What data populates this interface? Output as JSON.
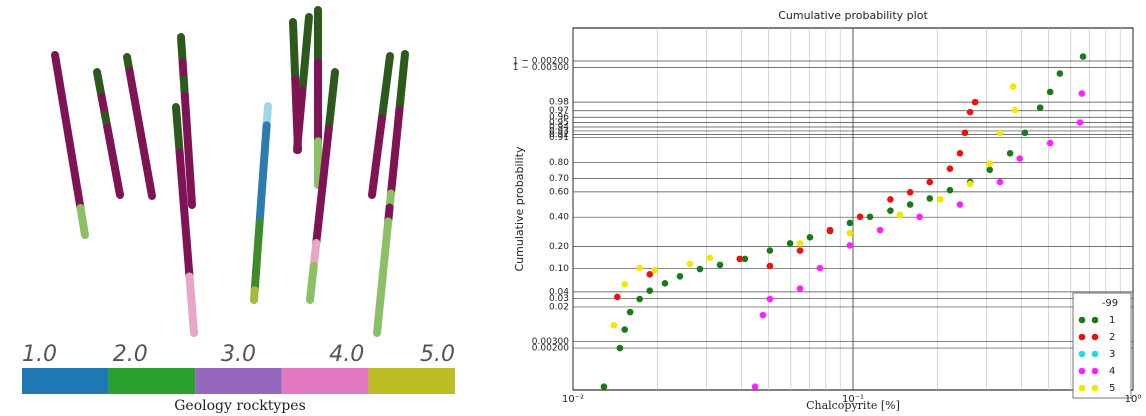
{
  "chart_data": [
    {
      "type": "colorbar",
      "xlabel": "Geology rocktypes",
      "bins": [
        1,
        1.8,
        2.6,
        3.4,
        4.2,
        5
      ],
      "colors": [
        "#1f77b4",
        "#2ca02c",
        "#9467bd",
        "#e377c2",
        "#bcbd22"
      ],
      "xlim": [
        1,
        5
      ],
      "xticks": [
        {
          "value": 1,
          "label": "1.0"
        },
        {
          "value": 2,
          "label": "2.0"
        },
        {
          "value": 3,
          "label": "3.0"
        },
        {
          "value": 4,
          "label": "4.0"
        },
        {
          "value": 5,
          "label": "5.0"
        }
      ]
    },
    {
      "type": "scatter",
      "title": "Cumulative probability plot",
      "xlabel": "Chalcopyrite [%]",
      "ylabel": "Cumulative probability",
      "xscale": "log",
      "yscale": "probability",
      "grid": true,
      "legend": "lower right",
      "legend_title": "-99",
      "xlim": [
        0.01,
        1
      ],
      "xticks": [
        {
          "value": 0.01,
          "label": "10⁻²"
        },
        {
          "value": 0.1,
          "label": "10⁻¹"
        },
        {
          "value": 1,
          "label": "10⁰"
        }
      ],
      "xminorticks": [
        0.02,
        0.03,
        0.04,
        0.05,
        0.06,
        0.07,
        0.08,
        0.09,
        0.2,
        0.3,
        0.4,
        0.5,
        0.6,
        0.7,
        0.8,
        0.9
      ],
      "ylim": [
        0.0001,
        0.9998
      ],
      "yticks": [
        {
          "value": 0.002,
          "label": "0.00200"
        },
        {
          "value": 0.003,
          "label": "0.00300"
        },
        {
          "value": 0.02,
          "label": "0.02"
        },
        {
          "value": 0.03,
          "label": "0.03"
        },
        {
          "value": 0.04,
          "label": "0.04"
        },
        {
          "value": 0.1,
          "label": "0.10"
        },
        {
          "value": 0.2,
          "label": "0.20"
        },
        {
          "value": 0.4,
          "label": "0.40"
        },
        {
          "value": 0.6,
          "label": "0.60"
        },
        {
          "value": 0.7,
          "label": "0.70"
        },
        {
          "value": 0.8,
          "label": "0.80"
        },
        {
          "value": 0.91,
          "label": "0.91"
        },
        {
          "value": 0.92,
          "label": "0.92"
        },
        {
          "value": 0.93,
          "label": "0.93"
        },
        {
          "value": 0.94,
          "label": "0.94"
        },
        {
          "value": 0.95,
          "label": "0.95"
        },
        {
          "value": 0.96,
          "label": "0.96"
        },
        {
          "value": 0.97,
          "label": "0.97"
        },
        {
          "value": 0.98,
          "label": "0.98"
        },
        {
          "value": 0.997,
          "label": "1 − 0.00300"
        },
        {
          "value": 0.998,
          "label": "1 − 0.00200"
        }
      ],
      "series": [
        {
          "name": "1",
          "color": "#1a7a1a",
          "x": [
            0.0129,
            0.0147,
            0.0153,
            0.016,
            0.0173,
            0.0188,
            0.0213,
            0.0241,
            0.0284,
            0.0335,
            0.0411,
            0.0505,
            0.0596,
            0.0702,
            0.0828,
            0.0975,
            0.115,
            0.136,
            0.16,
            0.188,
            0.222,
            0.262,
            0.308,
            0.364,
            0.411,
            0.466,
            0.506,
            0.548,
            0.663
          ],
          "values": [
            0.00013,
            0.002,
            0.0061,
            0.0155,
            0.029,
            0.042,
            0.057,
            0.075,
            0.098,
            0.113,
            0.138,
            0.178,
            0.218,
            0.256,
            0.297,
            0.356,
            0.403,
            0.451,
            0.5,
            0.549,
            0.613,
            0.674,
            0.757,
            0.848,
            0.925,
            0.974,
            0.988,
            0.9957,
            0.9985
          ]
        },
        {
          "name": "2",
          "color": "#ee1111",
          "x": [
            0.0144,
            0.0188,
            0.0394,
            0.0505,
            0.0647,
            0.0828,
            0.106,
            0.136,
            0.16,
            0.188,
            0.222,
            0.241,
            0.251,
            0.262,
            0.273
          ],
          "values": [
            0.032,
            0.081,
            0.138,
            0.109,
            0.178,
            0.304,
            0.403,
            0.541,
            0.597,
            0.674,
            0.764,
            0.848,
            0.925,
            0.968,
            0.98
          ]
        },
        {
          "name": "3",
          "color": "#22dddd",
          "x": [],
          "values": []
        },
        {
          "name": "4",
          "color": "#ff22ff",
          "x": [
            0.0447,
            0.0477,
            0.0505,
            0.0647,
            0.0762,
            0.0975,
            0.125,
            0.173,
            0.241,
            0.335,
            0.394,
            0.506,
            0.647,
            0.657
          ],
          "values": [
            0.00013,
            0.0133,
            0.029,
            0.046,
            0.1015,
            0.206,
            0.304,
            0.403,
            0.5,
            0.674,
            0.822,
            0.891,
            0.95,
            0.987
          ]
        },
        {
          "name": "5",
          "color": "#f5e600",
          "x": [
            0.014,
            0.0153,
            0.0173,
            0.0196,
            0.0262,
            0.0308,
            0.0647,
            0.0975,
            0.147,
            0.205,
            0.262,
            0.308,
            0.335,
            0.379,
            0.373
          ],
          "values": [
            0.0077,
            0.055,
            0.1015,
            0.094,
            0.117,
            0.143,
            0.218,
            0.283,
            0.419,
            0.541,
            0.66,
            0.794,
            0.925,
            0.971,
            0.991
          ]
        }
      ]
    }
  ]
}
